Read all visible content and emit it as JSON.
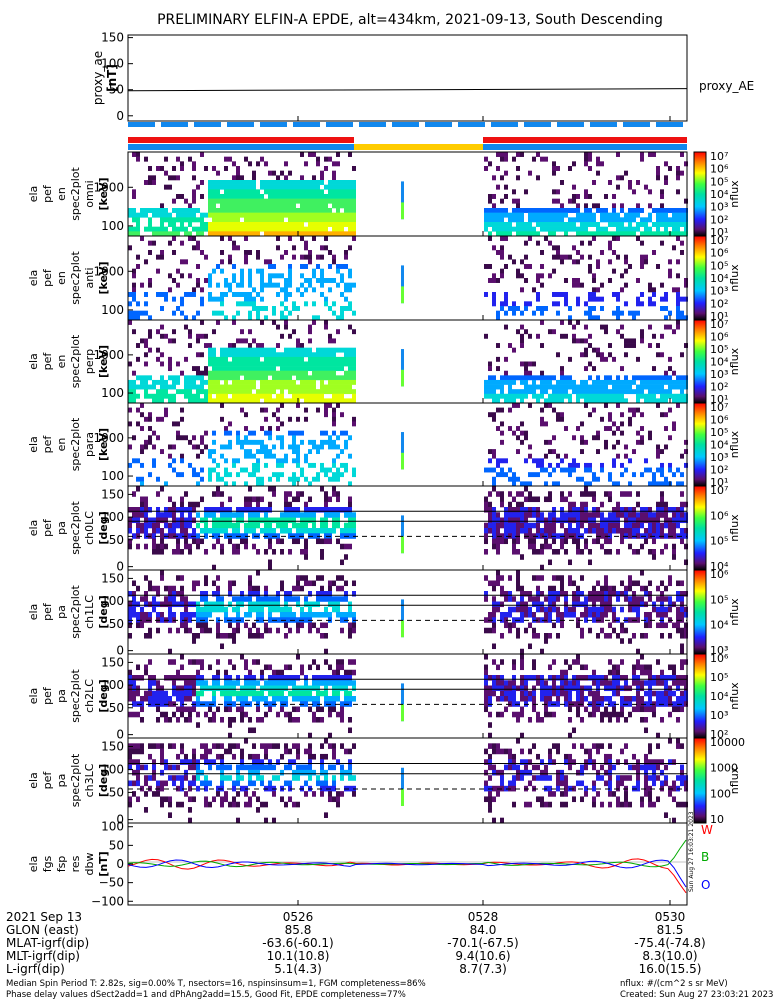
{
  "title": "PRELIMINARY ELFIN-A EPDE, alt=434km, 2021-09-13, South Descending",
  "colors": {
    "line": "#000000",
    "w": "#ff0000",
    "b": "#00aa00",
    "o": "#0000ff",
    "red_bar": "#ee1111",
    "blue_bar": "#1188ee",
    "yellow_bar": "#ffcc00"
  },
  "chart_data": [
    {
      "type": "line",
      "ylabel": [
        "proxy_ae",
        "[nT]"
      ],
      "ylim": [
        -10,
        155
      ],
      "yticks": [
        "150",
        "100",
        "50",
        "0"
      ],
      "ytick_values": [
        150,
        100,
        50,
        0
      ],
      "legend": "proxy_AE",
      "series": [
        {
          "name": "proxy_AE",
          "x": [
            0,
            1
          ],
          "values": [
            48,
            52
          ]
        }
      ]
    },
    {
      "type": "heatmap",
      "ylabel": [
        "ela",
        "pef",
        "en",
        "spec2plot",
        "omni",
        "[keV]"
      ],
      "yticks": [
        "1000",
        "100"
      ],
      "cbar_ticks": [
        "10⁷",
        "10⁶",
        "10⁵",
        "10⁴",
        "10³",
        "10²",
        "10¹"
      ],
      "cbar_label": "nflux"
    },
    {
      "type": "heatmap",
      "ylabel": [
        "ela",
        "pef",
        "en",
        "spec2plot",
        "anti",
        "[keV]"
      ],
      "yticks": [
        "1000",
        "100"
      ],
      "cbar_ticks": [
        "10⁷",
        "10⁶",
        "10⁵",
        "10⁴",
        "10³",
        "10²",
        "10¹"
      ],
      "cbar_label": "nflux"
    },
    {
      "type": "heatmap",
      "ylabel": [
        "ela",
        "pef",
        "en",
        "spec2plot",
        "perp",
        "[keV]"
      ],
      "yticks": [
        "1000",
        "100"
      ],
      "cbar_ticks": [
        "10⁷",
        "10⁶",
        "10⁵",
        "10⁴",
        "10³",
        "10²",
        "10¹"
      ],
      "cbar_label": "nflux"
    },
    {
      "type": "heatmap",
      "ylabel": [
        "ela",
        "pef",
        "en",
        "spec2plot",
        "para",
        "[keV]"
      ],
      "yticks": [
        "1000",
        "100"
      ],
      "cbar_ticks": [
        "10⁷",
        "10⁶",
        "10⁵",
        "10⁴",
        "10³",
        "10²",
        "10¹"
      ],
      "cbar_label": "nflux"
    },
    {
      "type": "heatmap",
      "ylabel": [
        "ela",
        "pef",
        "pa",
        "spec2plot",
        "ch0LC",
        "[deg]"
      ],
      "yticks": [
        "150",
        "100",
        "50",
        "0"
      ],
      "cbar_ticks": [
        "10⁷",
        "10⁶",
        "10⁵",
        "10⁴"
      ],
      "cbar_label": "nflux"
    },
    {
      "type": "heatmap",
      "ylabel": [
        "ela",
        "pef",
        "pa",
        "spec2plot",
        "ch1LC",
        "[deg]"
      ],
      "yticks": [
        "150",
        "100",
        "50",
        "0"
      ],
      "cbar_ticks": [
        "10⁶",
        "10⁵",
        "10⁴",
        "10³"
      ],
      "cbar_label": "nflux"
    },
    {
      "type": "heatmap",
      "ylabel": [
        "ela",
        "pef",
        "pa",
        "spec2plot",
        "ch2LC",
        "[deg]"
      ],
      "yticks": [
        "150",
        "100",
        "50",
        "0"
      ],
      "cbar_ticks": [
        "10⁶",
        "10⁵",
        "10⁴",
        "10³",
        "10²"
      ],
      "cbar_label": "nflux"
    },
    {
      "type": "heatmap",
      "ylabel": [
        "ela",
        "pef",
        "pa",
        "spec2plot",
        "ch3LC",
        "[deg]"
      ],
      "yticks": [
        "150",
        "100",
        "50",
        "0"
      ],
      "cbar_ticks": [
        "10000",
        "1000",
        "100",
        "10"
      ],
      "cbar_label": "nflux"
    },
    {
      "type": "line",
      "ylabel": [
        "ela",
        "fgs",
        "fsp",
        "res",
        "dbw",
        "[nT]"
      ],
      "ylim": [
        -110,
        110
      ],
      "yticks": [
        "100",
        "50",
        "0",
        "−50",
        "−100"
      ],
      "ytick_values": [
        100,
        50,
        0,
        -50,
        -100
      ],
      "legend": [
        "W",
        "B",
        "O"
      ],
      "side_text": "Sun Aug 27 16:03:21 2023"
    }
  ],
  "footer": {
    "rows": [
      [
        "2021 Sep 13",
        "0526",
        "0528",
        "0530"
      ],
      [
        "GLON (east)",
        "85.8",
        "84.0",
        "81.5"
      ],
      [
        "MLAT-igrf(dip)",
        "-63.6(-60.1)",
        "-70.1(-67.5)",
        "-75.4(-74.8)"
      ],
      [
        "MLT-igrf(dip)",
        "10.1(10.8)",
        "9.4(10.6)",
        "8.3(10.0)"
      ],
      [
        "L-igrf(dip)",
        "5.1(4.3)",
        "8.7(7.3)",
        "16.0(15.5)"
      ]
    ],
    "note1": "Median Spin Period T: 2.82s, sig=0.00% T, nsectors=16, nspinsinsum=1, FGM completeness=86%",
    "note2": "Phase delay values dSect2add=1 and dPhAng2add=15.5, Good Fit, EPDE completeness=77%",
    "note3": "nflux: #/(cm^2 s sr MeV)",
    "note4": "Created: Sun Aug 27 23:03:21 2023"
  }
}
